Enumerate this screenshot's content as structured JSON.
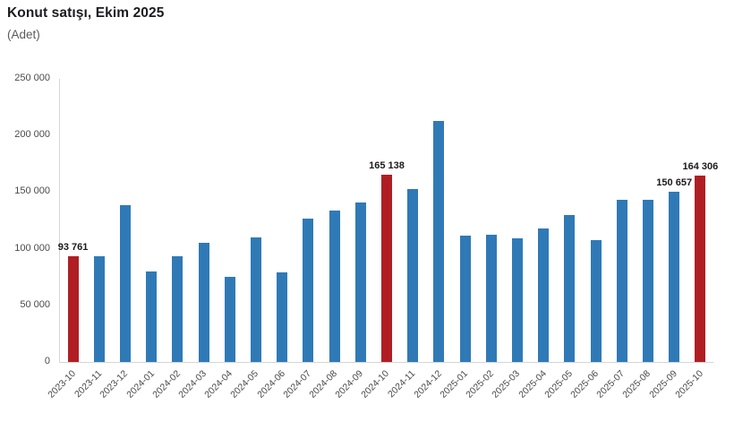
{
  "header": {
    "title": "Konut satışı, Ekim 2025",
    "subtitle": "(Adet)"
  },
  "chart_data": {
    "type": "bar",
    "title": "Konut satışı, Ekim 2025",
    "unit_label": "(Adet)",
    "xlabel": "",
    "ylabel": "",
    "ylim": [
      0,
      250000
    ],
    "ytick_labels": [
      "0",
      "50 000",
      "100 000",
      "150 000",
      "200 000",
      "250 000"
    ],
    "grid": false,
    "legend": "none",
    "bar_color": "#2F7AB6",
    "highlight_color": "#B01E24",
    "highlight_indices": [
      0,
      12,
      24
    ],
    "categories": [
      "2023-10",
      "2023-11",
      "2023-12",
      "2024-01",
      "2024-02",
      "2024-03",
      "2024-04",
      "2024-05",
      "2024-06",
      "2024-07",
      "2024-08",
      "2024-09",
      "2024-10",
      "2024-11",
      "2024-12",
      "2025-01",
      "2025-02",
      "2025-03",
      "2025-04",
      "2025-05",
      "2025-06",
      "2025-07",
      "2025-08",
      "2025-09",
      "2025-10"
    ],
    "values": [
      93761,
      93200,
      138100,
      80200,
      93700,
      105500,
      75400,
      110400,
      78900,
      127000,
      134100,
      141200,
      165138,
      152900,
      212500,
      111900,
      112600,
      109500,
      118200,
      130100,
      107500,
      142900,
      143600,
      150657,
      164306
    ],
    "data_labels": [
      {
        "index": 0,
        "text": "93 761"
      },
      {
        "index": 12,
        "text": "165 138"
      },
      {
        "index": 23,
        "text": "150 657"
      },
      {
        "index": 24,
        "text": "164 306"
      }
    ]
  }
}
